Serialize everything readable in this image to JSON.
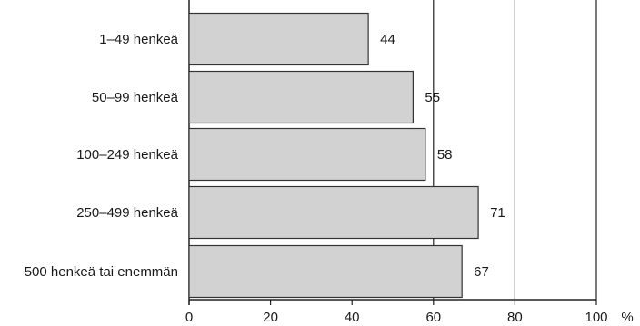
{
  "chart_data": {
    "type": "bar",
    "orientation": "horizontal",
    "categories": [
      "1–49 henkeä",
      "50–99 henkeä",
      "100–249 henkeä",
      "250–499 henkeä",
      "500 henkeä tai enemmän"
    ],
    "values": [
      44,
      55,
      58,
      71,
      67
    ],
    "data_labels": [
      "44",
      "55",
      "58",
      "71",
      "67"
    ],
    "xlim": [
      0,
      100
    ],
    "xticks": [
      0,
      20,
      40,
      60,
      80,
      100
    ],
    "xtick_labels": [
      "0",
      "20",
      "40",
      "60",
      "80",
      "100"
    ],
    "x_unit": "%",
    "grid": "vertical lines at 60, 80, 100",
    "bar_color": "#d2d2d2",
    "bar_edge_color": "#333333"
  }
}
